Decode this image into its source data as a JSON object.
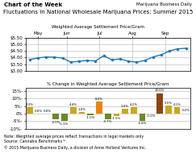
{
  "chart_data": [
    {
      "type": "line",
      "title": "Fluctuations in National Wholesale Marijuana Prices: Summer 2015",
      "subtitle": "Weighted Average Settlement Price/Gram",
      "annotations": [
        "Chart of the Week",
        "Marijuana Business Daily"
      ],
      "x": [
        1,
        2,
        3,
        4,
        5,
        6,
        7,
        8,
        9,
        10,
        11,
        12,
        13,
        14,
        15,
        16,
        17,
        18,
        19,
        20
      ],
      "values": [
        3.85,
        3.97,
        4.05,
        4.03,
        3.97,
        3.65,
        3.72,
        3.78,
        3.74,
        4.15,
        3.82,
        3.9,
        3.72,
        3.65,
        3.78,
        4.05,
        4.22,
        4.52,
        4.68,
        4.72
      ],
      "marker": "o",
      "xlim": [
        0.5,
        20.5
      ],
      "xticks": [
        {
          "value": 2.0,
          "label": "May"
        },
        {
          "value": 5.5,
          "label": "Jun"
        },
        {
          "value": 9.5,
          "label": "Jul"
        },
        {
          "value": 13.5,
          "label": "Aug"
        },
        {
          "value": 17.5,
          "label": "Sep"
        }
      ],
      "ylim": [
        3.0,
        5.5
      ],
      "yticks": [
        {
          "value": 3.0,
          "label": "$3.00"
        },
        {
          "value": 3.5,
          "label": "$3.50"
        },
        {
          "value": 4.0,
          "label": "$4.00"
        },
        {
          "value": 4.5,
          "label": "$4.50"
        },
        {
          "value": 5.0,
          "label": "$5.00"
        },
        {
          "value": 5.5,
          "label": "$5.50"
        }
      ],
      "grid": true
    },
    {
      "type": "bar",
      "title": "% Change in Weighted Average Settlement Price/Gram",
      "annotations": [
        "Note: Weighted average prices reflect transactions in legal markets only\nSource: Cannabis Benchmarks™\n© 2015 Marijuana Business Daily, a division of Anne Holland Ventures Inc."
      ],
      "x": [
        1,
        2,
        3,
        4,
        5,
        6,
        7,
        8,
        9,
        10,
        11,
        12,
        13,
        14,
        15,
        16,
        17,
        18,
        19
      ],
      "values": [
        4.3,
        0.0,
        0.0,
        -4.0,
        -5.1,
        4.4,
        1.0,
        -1.0,
        8.0,
        -3.7,
        -1.5,
        3.0,
        4.2,
        -4.8,
        -0.2,
        13.6,
        5.5,
        4.1,
        0.2
      ],
      "value_labels": [
        "4.3%",
        "0.0%",
        "0.0%",
        "-4.0%",
        "-5.1%",
        "4.4%",
        "1.0%",
        "-1.0%",
        "8.0%",
        "-3.7%",
        "-1.5%",
        "3.0%",
        "4.2%",
        "-4.8%",
        "-0.2%",
        "13.6%",
        "5.5%",
        "4.1%",
        "0.2%"
      ],
      "data_labels": true,
      "colors": [
        "#C8A820",
        "#C8A820",
        "#6A8A2A",
        "#6A8A2A",
        "#6A8A2A",
        "#C8A820",
        "#C8A820",
        "#6A8A2A",
        "#E8850A",
        "#6A8A2A",
        "#C8A820",
        "#C8A820",
        "#C8A820",
        "#6A8A2A",
        "#C8A820",
        "#8B4513",
        "#C8A820",
        "#C8A820",
        "#C8A820"
      ],
      "xlim": [
        0.5,
        19.5
      ],
      "ylim": [
        -10,
        17
      ],
      "yticks": [
        {
          "value": -10,
          "label": "-10%-"
        },
        {
          "value": -5,
          "label": "-5%-"
        },
        {
          "value": 0,
          "label": "0%"
        },
        {
          "value": 5,
          "label": "5%-"
        },
        {
          "value": 10,
          "label": "10%-"
        },
        {
          "value": 15,
          "label": "15%-"
        }
      ],
      "grid": true,
      "tick_labels": "y"
    }
  ]
}
